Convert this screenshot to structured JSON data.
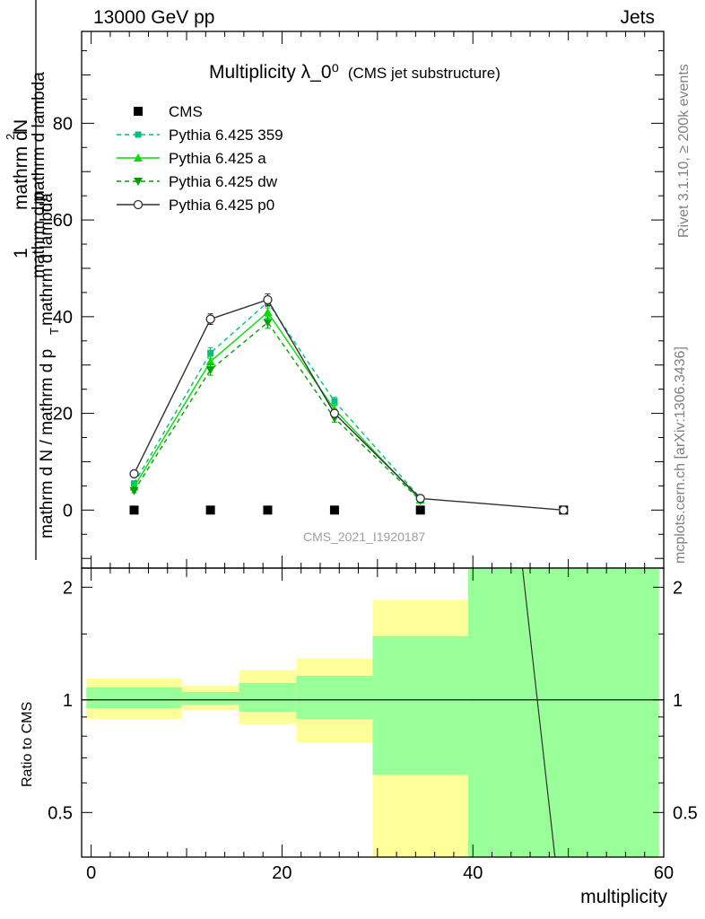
{
  "header": {
    "left": "13000 GeV pp",
    "right": "Jets"
  },
  "side": {
    "rivet": "Rivet 3.1.10, ≥ 200k events",
    "mcplots": "mcplots.cern.ch [arXiv:1306.3436]"
  },
  "chart_data": [
    {
      "type": "line",
      "title": "Multiplicity λ_0⁰",
      "subtitle": "(CMS jet substructure)",
      "watermark": "CMS_2021_I1920187",
      "ylabel_parts": [
        "1",
        "mathrm d N / mathrm d p",
        "T",
        "mathrm d lambda",
        "mathrm d",
        "2",
        "N",
        "mathrm d p",
        "T",
        "mathrm d lambda"
      ],
      "ylim": [
        -12,
        99
      ],
      "yticks": [
        0,
        20,
        40,
        60,
        80
      ],
      "xlim": [
        -1,
        60
      ],
      "series": [
        {
          "name": "CMS",
          "color": "#000000",
          "marker": "square",
          "dashed": false,
          "x": [
            4.5,
            12.5,
            18.5,
            25.5,
            34.5,
            49.5
          ],
          "y": [
            0,
            0,
            0,
            0,
            0,
            0
          ],
          "err": [
            0,
            0,
            0,
            0,
            0,
            0
          ]
        },
        {
          "name": "Pythia 6.425 359",
          "color": "#00bf80",
          "marker": "smallsquare",
          "dashed": true,
          "x": [
            4.5,
            12.5,
            18.5,
            25.5,
            34.5
          ],
          "y": [
            5.5,
            32.5,
            43.0,
            22.5,
            2.5
          ],
          "err": [
            0.4,
            1.1,
            1.2,
            0.8,
            0.2
          ]
        },
        {
          "name": "Pythia 6.425 a",
          "color": "#00e000",
          "marker": "triangle-up",
          "dashed": false,
          "x": [
            4.5,
            12.5,
            18.5,
            25.5,
            34.5
          ],
          "y": [
            4.8,
            30.7,
            40.9,
            20.8,
            2.1
          ],
          "err": [
            0.4,
            1.1,
            1.2,
            0.8,
            0.2
          ]
        },
        {
          "name": "Pythia 6.425 dw",
          "color": "#00a000",
          "marker": "triangle-down",
          "dashed": true,
          "x": [
            4.5,
            12.5,
            18.5,
            25.5,
            34.5
          ],
          "y": [
            4.0,
            29.0,
            38.8,
            19.0,
            2.0
          ],
          "err": [
            0.4,
            1.1,
            1.2,
            0.8,
            0.2
          ]
        },
        {
          "name": "Pythia 6.425 p0",
          "color": "#303030",
          "marker": "circle",
          "dashed": false,
          "x": [
            4.5,
            12.5,
            18.5,
            25.5,
            34.5,
            49.5
          ],
          "y": [
            7.5,
            39.5,
            43.5,
            20.0,
            2.4,
            0.0
          ],
          "err": [
            0.4,
            1.1,
            1.2,
            0.8,
            0.2,
            0
          ]
        }
      ],
      "legend_position": "top-left"
    },
    {
      "type": "area",
      "ylabel": "Ratio to CMS",
      "xlabel": "multiplicity",
      "xlim": [
        -1,
        60
      ],
      "xticks": [
        0,
        20,
        40,
        60
      ],
      "ylim": [
        0.38,
        2.25
      ],
      "yticks": [
        0.5,
        1,
        2
      ],
      "log_y": true,
      "bands": [
        {
          "x0": -0.5,
          "x1": 9.5,
          "yellow": [
            0.89,
            1.14
          ],
          "green": [
            0.95,
            1.08
          ]
        },
        {
          "x0": 9.5,
          "x1": 15.5,
          "yellow": [
            0.94,
            1.09
          ],
          "green": [
            0.97,
            1.05
          ]
        },
        {
          "x0": 15.5,
          "x1": 21.5,
          "yellow": [
            0.86,
            1.2
          ],
          "green": [
            0.93,
            1.11
          ]
        },
        {
          "x0": 21.5,
          "x1": 29.5,
          "yellow": [
            0.77,
            1.29
          ],
          "green": [
            0.89,
            1.16
          ]
        },
        {
          "x0": 29.5,
          "x1": 39.5,
          "yellow": [
            0.38,
            1.85
          ],
          "green": [
            0.63,
            1.48
          ]
        },
        {
          "x0": 39.5,
          "x1": 59.5,
          "yellow": [
            0.38,
            2.25
          ],
          "green": [
            0.38,
            2.25
          ]
        }
      ],
      "reference_line": 1,
      "p0_line": {
        "x": [
          45.2,
          48.6
        ],
        "y": [
          2.25,
          0.38
        ]
      }
    }
  ]
}
